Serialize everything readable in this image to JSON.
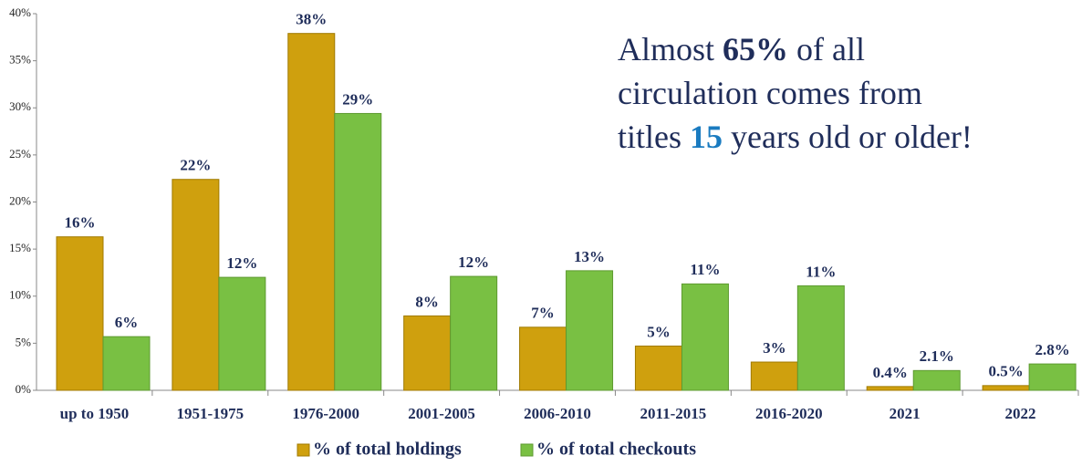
{
  "chart_data": {
    "type": "bar",
    "categories": [
      "up to 1950",
      "1951-1975",
      "1976-2000",
      "2001-2005",
      "2006-2010",
      "2011-2015",
      "2016-2020",
      "2021",
      "2022"
    ],
    "series": [
      {
        "name": "% of total holdings",
        "color": "#cfa00e",
        "values": [
          16.3,
          22.4,
          37.9,
          7.9,
          6.7,
          4.7,
          3.0,
          0.4,
          0.5
        ],
        "value_labels": [
          "16%",
          "22%",
          "38%",
          "8%",
          "7%",
          "5%",
          "3%",
          "0.4%",
          "0.5%"
        ]
      },
      {
        "name": "% of total checkouts",
        "color": "#79c043",
        "values": [
          5.7,
          12.0,
          29.4,
          12.1,
          12.7,
          11.3,
          11.1,
          2.1,
          2.8
        ],
        "value_labels": [
          "6%",
          "12%",
          "29%",
          "12%",
          "13%",
          "11%",
          "11%",
          "2.1%",
          "2.8%"
        ]
      }
    ],
    "ylim": [
      0,
      40
    ],
    "yticks": [
      {
        "value": 0,
        "label": "0%"
      },
      {
        "value": 5,
        "label": "5%"
      },
      {
        "value": 10,
        "label": "10%"
      },
      {
        "value": 15,
        "label": "15%"
      },
      {
        "value": 20,
        "label": "20%"
      },
      {
        "value": 25,
        "label": "25%"
      },
      {
        "value": 30,
        "label": "30%"
      },
      {
        "value": 35,
        "label": "35%"
      },
      {
        "value": 40,
        "label": "40%"
      }
    ],
    "legend": "bottom",
    "annotation": [
      [
        "Almost ",
        "65%",
        " of all"
      ],
      [
        "circulation comes from"
      ],
      [
        "titles ",
        "15",
        " years old or older!"
      ]
    ]
  }
}
